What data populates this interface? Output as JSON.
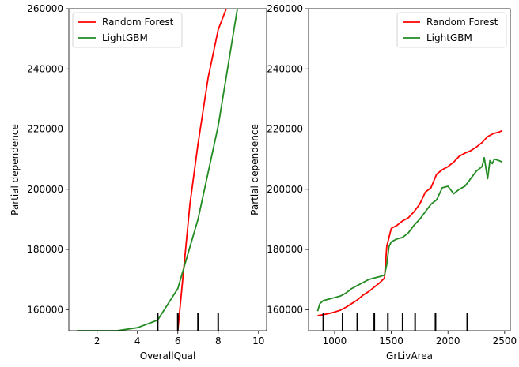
{
  "chart_data": [
    {
      "type": "line",
      "title": "",
      "xlabel": "OverallQual",
      "ylabel": "Partial dependence",
      "xlim": [
        0.6,
        10.4
      ],
      "ylim": [
        153000,
        260000
      ],
      "xticks": [
        2,
        4,
        6,
        8,
        10
      ],
      "yticks": [
        160000,
        180000,
        200000,
        220000,
        240000,
        260000
      ],
      "legend_position": "top-left",
      "grid": false,
      "series": [
        {
          "name": "Random Forest",
          "color": "#ff0000",
          "x": [
            6,
            6.6,
            7,
            7.5,
            8,
            8.4
          ],
          "y": [
            153000,
            195000,
            215000,
            237000,
            253000,
            260000
          ]
        },
        {
          "name": "LightGBM",
          "color": "#228b22",
          "x": [
            1,
            2,
            3,
            4,
            5,
            6,
            7,
            8,
            9
          ],
          "y": [
            153000,
            153000,
            153000,
            154000,
            156500,
            167000,
            190000,
            221000,
            262000
          ]
        }
      ],
      "rug_deciles": [
        5,
        5,
        6,
        7,
        8
      ]
    },
    {
      "type": "line",
      "title": "",
      "xlabel": "GrLivArea",
      "ylabel": "Partial dependence",
      "xlim": [
        770,
        2550
      ],
      "ylim": [
        153000,
        260000
      ],
      "xticks": [
        1000,
        1500,
        2000,
        2500
      ],
      "yticks": [
        160000,
        180000,
        200000,
        220000,
        240000,
        260000
      ],
      "legend_position": "top-right",
      "grid": false,
      "series": [
        {
          "name": "Random Forest",
          "color": "#ff0000",
          "x": [
            850,
            900,
            950,
            1000,
            1050,
            1100,
            1150,
            1200,
            1250,
            1300,
            1350,
            1400,
            1440,
            1460,
            1470,
            1500,
            1550,
            1600,
            1650,
            1700,
            1750,
            1800,
            1850,
            1900,
            1950,
            2000,
            2050,
            2100,
            2150,
            2200,
            2250,
            2300,
            2350,
            2400,
            2450,
            2480
          ],
          "y": [
            158000,
            158300,
            158700,
            159200,
            159800,
            160800,
            162000,
            163200,
            164800,
            166000,
            167500,
            169000,
            170500,
            181000,
            182500,
            187000,
            188000,
            189500,
            190500,
            192500,
            195000,
            199000,
            200500,
            205000,
            206500,
            207500,
            209000,
            211000,
            212000,
            212800,
            214000,
            215500,
            217500,
            218500,
            219000,
            219500
          ]
        },
        {
          "name": "LightGBM",
          "color": "#228b22",
          "x": [
            850,
            870,
            900,
            950,
            1000,
            1050,
            1100,
            1150,
            1200,
            1250,
            1300,
            1350,
            1400,
            1440,
            1460,
            1480,
            1500,
            1550,
            1600,
            1650,
            1700,
            1750,
            1800,
            1850,
            1900,
            1950,
            2000,
            2050,
            2100,
            2150,
            2200,
            2250,
            2300,
            2320,
            2350,
            2370,
            2390,
            2410,
            2450,
            2480
          ],
          "y": [
            159500,
            162000,
            163000,
            163500,
            164000,
            164500,
            165500,
            167000,
            168000,
            169000,
            170000,
            170500,
            171000,
            171500,
            175000,
            181000,
            182500,
            183500,
            184000,
            185500,
            188000,
            190000,
            192500,
            195000,
            196500,
            200500,
            201000,
            198500,
            200000,
            201000,
            203500,
            206000,
            207500,
            210500,
            203500,
            209500,
            208500,
            210000,
            209500,
            209000
          ]
        }
      ],
      "rug_deciles": [
        900,
        1070,
        1200,
        1350,
        1470,
        1600,
        1710,
        1890,
        2170
      ]
    }
  ]
}
